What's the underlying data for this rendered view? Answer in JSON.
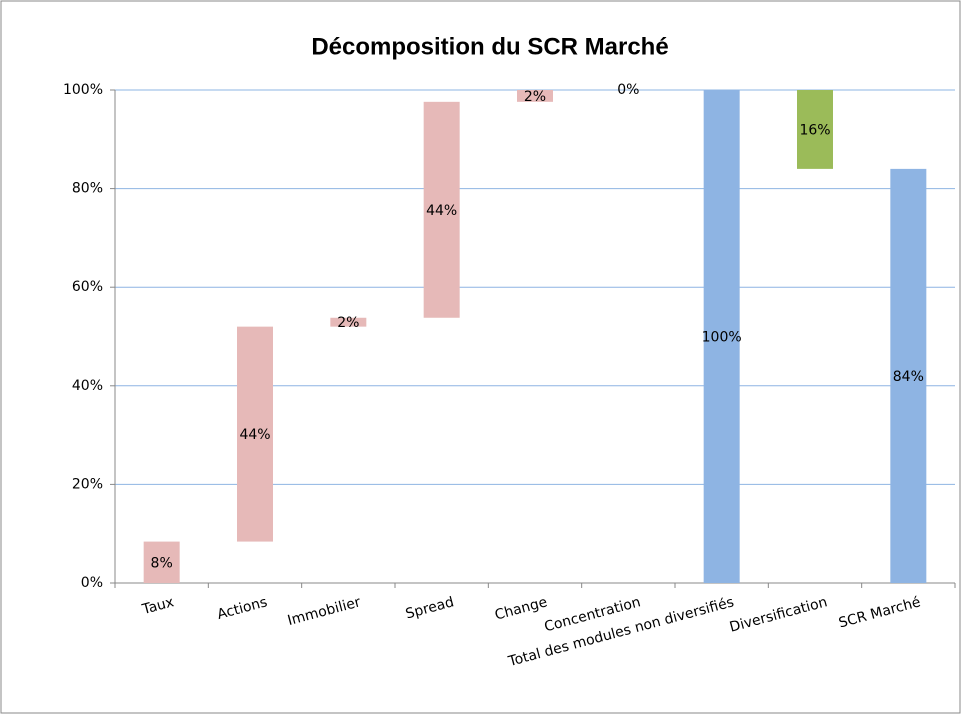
{
  "chart_data": {
    "type": "waterfall",
    "title": "Décomposition du SCR Marché",
    "categories": [
      "Taux",
      "Actions",
      "Immobilier",
      "Spread",
      "Change",
      "Concentration",
      "Total des modules non diversifiés",
      "Diversification",
      "SCR Marché"
    ],
    "values": [
      8.4,
      43.6,
      1.8,
      43.8,
      2.4,
      0,
      100,
      -16,
      84
    ],
    "value_labels": [
      "8%",
      "44%",
      "2%",
      "44%",
      "2%",
      "0%",
      "100%",
      "16%",
      "84%"
    ],
    "measure": [
      "relative",
      "relative",
      "relative",
      "relative",
      "relative",
      "relative",
      "total",
      "relative",
      "total"
    ],
    "colors": [
      "#e6b9b8",
      "#e6b9b8",
      "#e6b9b8",
      "#e6b9b8",
      "#e6b9b8",
      "#e6b9b8",
      "#8eb4e3",
      "#9bbb59",
      "#8eb4e3"
    ],
    "ylim": [
      0,
      100
    ],
    "yticks": [
      {
        "value": 0,
        "label": "0%"
      },
      {
        "value": 20,
        "label": "20%"
      },
      {
        "value": 40,
        "label": "40%"
      },
      {
        "value": 60,
        "label": "60%"
      },
      {
        "value": 80,
        "label": "80%"
      },
      {
        "value": 100,
        "label": "100%"
      }
    ],
    "grid": true
  }
}
